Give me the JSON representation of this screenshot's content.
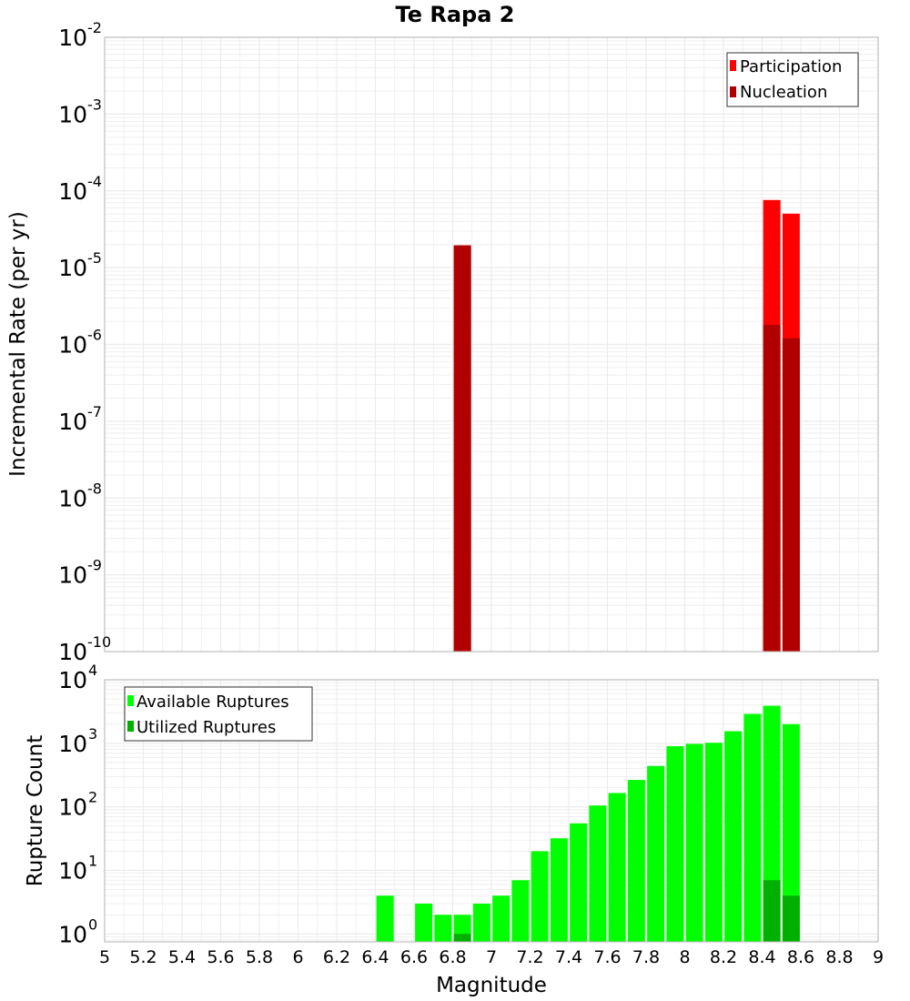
{
  "chart_data": [
    {
      "type": "bar",
      "title": "Te Rapa 2",
      "xlabel": "Magnitude",
      "ylabel": "Incremental Rate (per yr)",
      "yscale": "log",
      "xlim": [
        5,
        9
      ],
      "ylim": [
        1e-10,
        0.01
      ],
      "y_tick_exponents": [
        "-2",
        "-3",
        "-4",
        "-5",
        "-6",
        "-7",
        "-8",
        "-9",
        "-10"
      ],
      "legend_position": "top-right",
      "series": [
        {
          "name": "Participation",
          "color": "#ff0000",
          "x": [
            6.85,
            8.45,
            8.55
          ],
          "values": [
            1.95e-05,
            7.6e-05,
            5.05e-05
          ]
        },
        {
          "name": "Nucleation",
          "color": "#b00000",
          "x": [
            6.85,
            8.45,
            8.55
          ],
          "values": [
            1.95e-05,
            1.8e-06,
            1.2e-06
          ]
        }
      ]
    },
    {
      "type": "bar",
      "xlabel": "Magnitude",
      "ylabel": "Rupture Count",
      "yscale": "log",
      "xlim": [
        5,
        9
      ],
      "ylim": [
        0.75,
        10000
      ],
      "x_ticks": [
        "5",
        "5.2",
        "5.4",
        "5.6",
        "5.8",
        "6",
        "6.2",
        "6.4",
        "6.6",
        "6.8",
        "7",
        "7.2",
        "7.4",
        "7.6",
        "7.8",
        "8",
        "8.2",
        "8.4",
        "8.6",
        "8.8",
        "9"
      ],
      "y_tick_exponents": [
        "4",
        "3",
        "2",
        "1",
        "0"
      ],
      "legend_position": "top-left",
      "series": [
        {
          "name": "Available Ruptures",
          "color": "#00ff00",
          "x": [
            6.45,
            6.65,
            6.75,
            6.85,
            6.95,
            7.05,
            7.15,
            7.25,
            7.35,
            7.45,
            7.55,
            7.65,
            7.75,
            7.85,
            7.95,
            8.05,
            8.15,
            8.25,
            8.35,
            8.45,
            8.55
          ],
          "values": [
            4,
            3,
            2,
            2,
            3,
            4,
            7,
            20,
            32,
            55,
            105,
            165,
            265,
            440,
            900,
            980,
            1020,
            1550,
            2900,
            3900,
            2000
          ]
        },
        {
          "name": "Utilized Ruptures",
          "color": "#00b000",
          "x": [
            6.85,
            8.45,
            8.55
          ],
          "values": [
            1,
            7,
            4
          ]
        }
      ]
    }
  ],
  "colors": {
    "grid": "#ebebeb",
    "plot_border": "#b4b4b4"
  }
}
